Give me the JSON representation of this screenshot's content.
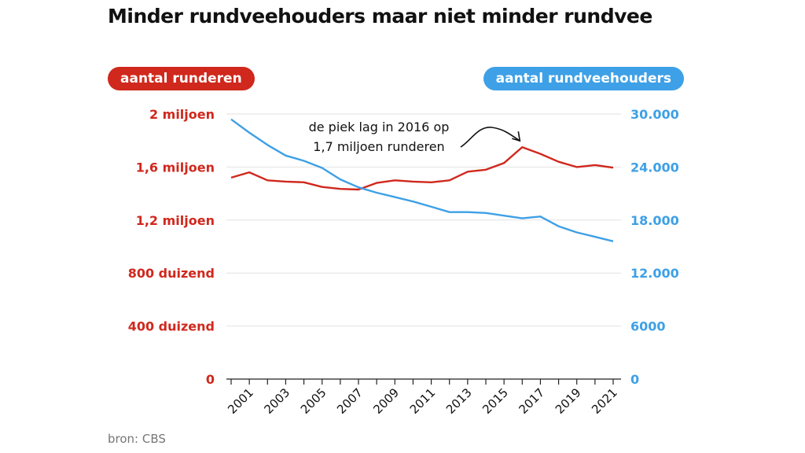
{
  "title": "Minder rundveehouders maar niet minder rundvee",
  "source": "bron: CBS",
  "colors": {
    "left": "#d0281d",
    "right": "#3ea0e6",
    "grid": "#e2e2e2",
    "axis": "#222222",
    "annotation": "#111111"
  },
  "chart_data": {
    "type": "line",
    "title": "Minder rundveehouders maar niet minder rundvee",
    "x": [
      2000,
      2001,
      2002,
      2003,
      2004,
      2005,
      2006,
      2007,
      2008,
      2009,
      2010,
      2011,
      2012,
      2013,
      2014,
      2015,
      2016,
      2017,
      2018,
      2019,
      2020,
      2021
    ],
    "x_tick_labels": [
      "2001",
      "2003",
      "2005",
      "2007",
      "2009",
      "2011",
      "2013",
      "2015",
      "2017",
      "2019",
      "2021"
    ],
    "xlim": [
      2000,
      2021
    ],
    "series": [
      {
        "name": "aantal runderen",
        "axis": "left",
        "color": "#d0281d",
        "values": [
          1520000,
          1560000,
          1500000,
          1490000,
          1485000,
          1450000,
          1435000,
          1430000,
          1480000,
          1500000,
          1490000,
          1485000,
          1500000,
          1565000,
          1580000,
          1630000,
          1750000,
          1700000,
          1640000,
          1600000,
          1615000,
          1595000
        ]
      },
      {
        "name": "aantal rundveehouders",
        "axis": "right",
        "color": "#3ea0e6",
        "values": [
          29400,
          27900,
          26500,
          25300,
          24700,
          23900,
          22600,
          21700,
          21100,
          20600,
          20100,
          19500,
          18900,
          18900,
          18800,
          18500,
          18200,
          18400,
          17300,
          16600,
          16100,
          15600
        ]
      }
    ],
    "y_left": {
      "label": "aantal runderen",
      "ylim": [
        0,
        2000000
      ],
      "ticks": [
        0,
        400000,
        800000,
        1200000,
        1600000,
        2000000
      ],
      "tick_labels": [
        "0",
        "400 duizend",
        "800 duizend",
        "1,2 miljoen",
        "1,6 miljoen",
        "2 miljoen"
      ]
    },
    "y_right": {
      "label": "aantal rundveehouders",
      "ylim": [
        0,
        30000
      ],
      "ticks": [
        0,
        6000,
        12000,
        18000,
        24000,
        30000
      ],
      "tick_labels": [
        "0",
        "6000",
        "12.000",
        "18.000",
        "24.000",
        "30.000"
      ]
    },
    "annotation": {
      "lines": [
        "de piek lag in 2016 op",
        "1,7 miljoen runderen"
      ],
      "target_x": 2016
    },
    "grid": true
  }
}
